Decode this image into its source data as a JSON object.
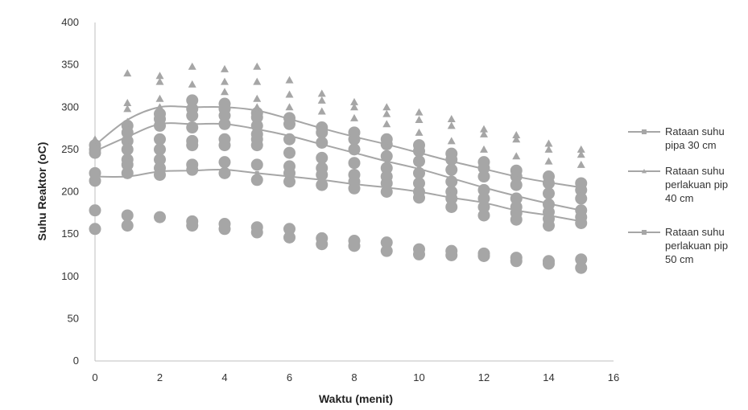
{
  "chart_data": {
    "type": "scatter",
    "xlabel": "Waktu (menit)",
    "ylabel": "Suhu Reaktor (oC)",
    "xlim": [
      0,
      16
    ],
    "ylim": [
      0,
      400
    ],
    "x_ticks": [
      0,
      2,
      4,
      6,
      8,
      10,
      12,
      14,
      16
    ],
    "y_ticks": [
      0,
      50,
      100,
      150,
      200,
      250,
      300,
      350,
      400
    ],
    "grid": false,
    "legend_position": "right",
    "colors": {
      "markers": "#a6a6a6",
      "lines": "#a6a6a6",
      "axis": "#bfbfbf"
    },
    "legend": [
      {
        "marker": "square",
        "lines": [
          "Rataan suhu",
          "pipa 30 cm"
        ]
      },
      {
        "marker": "triangle",
        "lines": [
          "Rataan suhu",
          "perlakuan pip",
          "40 cm"
        ]
      },
      {
        "marker": "square",
        "lines": [
          "Rataan suhu",
          "perlakuan pip",
          "50 cm"
        ]
      }
    ],
    "series": [
      {
        "marker": "square",
        "x": [
          0,
          1,
          2,
          3,
          4,
          5,
          6,
          7,
          8,
          9,
          10,
          11,
          12,
          13,
          14,
          15
        ],
        "values": [
          218,
          218,
          224,
          225,
          226,
          222,
          218,
          214,
          209,
          205,
          200,
          193,
          187,
          178,
          172,
          165
        ]
      },
      {
        "marker": "triangle",
        "x": [
          0,
          1,
          2,
          3,
          4,
          5,
          6,
          7,
          8,
          9,
          10,
          11,
          12,
          13,
          14,
          15
        ],
        "values": [
          255,
          285,
          300,
          300,
          300,
          296,
          286,
          275,
          265,
          256,
          246,
          236,
          227,
          218,
          211,
          205
        ]
      },
      {
        "marker": "square",
        "x": [
          0,
          1,
          2,
          3,
          4,
          5,
          6,
          7,
          8,
          9,
          10,
          11,
          12,
          13,
          14,
          15
        ],
        "values": [
          248,
          265,
          280,
          280,
          280,
          274,
          266,
          256,
          246,
          236,
          227,
          216,
          205,
          195,
          186,
          178
        ]
      }
    ],
    "scatter_groups": [
      {
        "marker": "triangle",
        "points": [
          [
            0,
            262
          ],
          [
            1,
            340
          ],
          [
            1,
            305
          ],
          [
            1,
            298
          ],
          [
            2,
            337
          ],
          [
            2,
            330
          ],
          [
            2,
            310
          ],
          [
            2,
            300
          ],
          [
            3,
            348
          ],
          [
            3,
            327
          ],
          [
            3,
            305
          ],
          [
            3,
            290
          ],
          [
            4,
            345
          ],
          [
            4,
            330
          ],
          [
            4,
            318
          ],
          [
            4,
            305
          ],
          [
            5,
            348
          ],
          [
            5,
            330
          ],
          [
            5,
            310
          ],
          [
            5,
            300
          ],
          [
            6,
            332
          ],
          [
            6,
            315
          ],
          [
            6,
            300
          ],
          [
            7,
            316
          ],
          [
            7,
            308
          ],
          [
            7,
            295
          ],
          [
            8,
            306
          ],
          [
            8,
            300
          ],
          [
            8,
            287
          ],
          [
            9,
            300
          ],
          [
            9,
            292
          ],
          [
            9,
            280
          ],
          [
            10,
            294
          ],
          [
            10,
            285
          ],
          [
            10,
            270
          ],
          [
            11,
            286
          ],
          [
            11,
            278
          ],
          [
            11,
            260
          ],
          [
            12,
            274
          ],
          [
            12,
            268
          ],
          [
            12,
            250
          ],
          [
            13,
            267
          ],
          [
            13,
            262
          ],
          [
            13,
            242
          ],
          [
            14,
            257
          ],
          [
            14,
            250
          ],
          [
            14,
            236
          ],
          [
            15,
            250
          ],
          [
            15,
            244
          ],
          [
            15,
            232
          ]
        ]
      },
      {
        "marker": "circle",
        "points": [
          [
            0,
            255
          ],
          [
            0,
            250
          ],
          [
            0,
            246
          ],
          [
            0,
            222
          ],
          [
            0,
            213
          ],
          [
            0,
            178
          ],
          [
            0,
            156
          ],
          [
            1,
            278
          ],
          [
            1,
            270
          ],
          [
            1,
            260
          ],
          [
            1,
            250
          ],
          [
            1,
            238
          ],
          [
            1,
            232
          ],
          [
            1,
            222
          ],
          [
            1,
            172
          ],
          [
            1,
            160
          ],
          [
            2,
            292
          ],
          [
            2,
            286
          ],
          [
            2,
            278
          ],
          [
            2,
            262
          ],
          [
            2,
            250
          ],
          [
            2,
            238
          ],
          [
            2,
            228
          ],
          [
            2,
            220
          ],
          [
            2,
            170
          ],
          [
            3,
            308
          ],
          [
            3,
            298
          ],
          [
            3,
            290
          ],
          [
            3,
            276
          ],
          [
            3,
            260
          ],
          [
            3,
            255
          ],
          [
            3,
            232
          ],
          [
            3,
            226
          ],
          [
            3,
            165
          ],
          [
            3,
            160
          ],
          [
            4,
            304
          ],
          [
            4,
            298
          ],
          [
            4,
            290
          ],
          [
            4,
            280
          ],
          [
            4,
            262
          ],
          [
            4,
            255
          ],
          [
            4,
            235
          ],
          [
            4,
            222
          ],
          [
            4,
            162
          ],
          [
            4,
            156
          ],
          [
            5,
            293
          ],
          [
            5,
            288
          ],
          [
            5,
            278
          ],
          [
            5,
            268
          ],
          [
            5,
            262
          ],
          [
            5,
            255
          ],
          [
            5,
            232
          ],
          [
            5,
            214
          ],
          [
            5,
            158
          ],
          [
            5,
            152
          ],
          [
            6,
            287
          ],
          [
            6,
            280
          ],
          [
            6,
            262
          ],
          [
            6,
            246
          ],
          [
            6,
            230
          ],
          [
            6,
            222
          ],
          [
            6,
            212
          ],
          [
            6,
            156
          ],
          [
            6,
            146
          ],
          [
            7,
            276
          ],
          [
            7,
            270
          ],
          [
            7,
            258
          ],
          [
            7,
            240
          ],
          [
            7,
            228
          ],
          [
            7,
            220
          ],
          [
            7,
            208
          ],
          [
            7,
            145
          ],
          [
            7,
            138
          ],
          [
            8,
            270
          ],
          [
            8,
            262
          ],
          [
            8,
            250
          ],
          [
            8,
            234
          ],
          [
            8,
            220
          ],
          [
            8,
            212
          ],
          [
            8,
            204
          ],
          [
            8,
            142
          ],
          [
            8,
            136
          ],
          [
            9,
            262
          ],
          [
            9,
            256
          ],
          [
            9,
            242
          ],
          [
            9,
            228
          ],
          [
            9,
            218
          ],
          [
            9,
            210
          ],
          [
            9,
            200
          ],
          [
            9,
            140
          ],
          [
            9,
            130
          ],
          [
            10,
            255
          ],
          [
            10,
            248
          ],
          [
            10,
            236
          ],
          [
            10,
            222
          ],
          [
            10,
            210
          ],
          [
            10,
            200
          ],
          [
            10,
            193
          ],
          [
            10,
            132
          ],
          [
            10,
            126
          ],
          [
            11,
            245
          ],
          [
            11,
            238
          ],
          [
            11,
            226
          ],
          [
            11,
            212
          ],
          [
            11,
            200
          ],
          [
            11,
            192
          ],
          [
            11,
            182
          ],
          [
            11,
            130
          ],
          [
            11,
            125
          ],
          [
            12,
            235
          ],
          [
            12,
            228
          ],
          [
            12,
            218
          ],
          [
            12,
            202
          ],
          [
            12,
            192
          ],
          [
            12,
            182
          ],
          [
            12,
            172
          ],
          [
            12,
            127
          ],
          [
            12,
            124
          ],
          [
            13,
            225
          ],
          [
            13,
            218
          ],
          [
            13,
            208
          ],
          [
            13,
            192
          ],
          [
            13,
            182
          ],
          [
            13,
            175
          ],
          [
            13,
            167
          ],
          [
            13,
            122
          ],
          [
            13,
            118
          ],
          [
            14,
            218
          ],
          [
            14,
            210
          ],
          [
            14,
            198
          ],
          [
            14,
            185
          ],
          [
            14,
            176
          ],
          [
            14,
            168
          ],
          [
            14,
            160
          ],
          [
            14,
            118
          ],
          [
            14,
            115
          ],
          [
            15,
            210
          ],
          [
            15,
            202
          ],
          [
            15,
            192
          ],
          [
            15,
            178
          ],
          [
            15,
            170
          ],
          [
            15,
            163
          ],
          [
            15,
            120
          ],
          [
            15,
            110
          ]
        ]
      }
    ]
  }
}
